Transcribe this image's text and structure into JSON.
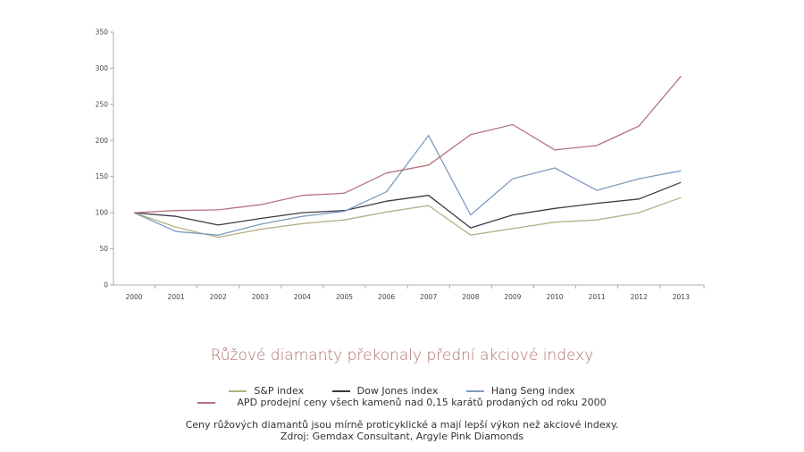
{
  "chart_data": {
    "type": "line",
    "x": [
      "2000",
      "2001",
      "2002",
      "2003",
      "2004",
      "2005",
      "2006",
      "2007",
      "2008",
      "2009",
      "2010",
      "2011",
      "2012",
      "2013"
    ],
    "ylim": [
      0,
      350
    ],
    "yticks": [
      "0",
      "50",
      "100",
      "150",
      "200",
      "250",
      "300",
      "350"
    ],
    "grid": false,
    "series": [
      {
        "name": "S&P index",
        "color": "#b5b083",
        "values": [
          100,
          80,
          66,
          77,
          85,
          90,
          101,
          110,
          69,
          78,
          87,
          90,
          100,
          121
        ]
      },
      {
        "name": "Dow Jones index",
        "color": "#3a3a44",
        "values": [
          100,
          95,
          83,
          92,
          100,
          103,
          116,
          124,
          79,
          97,
          106,
          113,
          119,
          142
        ]
      },
      {
        "name": "Hang Seng index",
        "color": "#7f9cc0",
        "values": [
          100,
          74,
          69,
          84,
          95,
          102,
          129,
          207,
          97,
          147,
          162,
          131,
          147,
          158
        ]
      },
      {
        "name": "APD prodejní ceny všech kamenů nad 0,15 karátů prodaných od roku 2000",
        "color": "#b3757a",
        "values": [
          100,
          103,
          104,
          111,
          124,
          127,
          155,
          166,
          208,
          222,
          187,
          193,
          220,
          289
        ]
      }
    ],
    "title": "Růžové diamanty překonaly přední akciové indexy"
  },
  "note": {
    "line1": "Ceny růžových diamantů jsou mírně proticyklické a mají lepší výkon než akciové indexy.",
    "line2": "Zdroj: Gemdax Consultant, Argyle Pink Diamonds"
  }
}
